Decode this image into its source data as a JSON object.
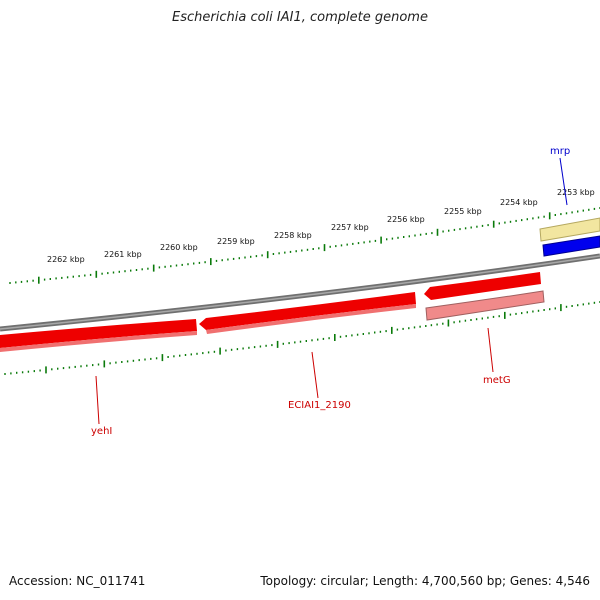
{
  "title": "Escherichia coli IAI1, complete genome",
  "footer": {
    "accession": "Accession: NC_011741",
    "topology": "Topology: circular; Length: 4,700,560 bp; Genes: 4,546"
  },
  "ruler": {
    "unit": "kbp",
    "labels": [
      "2262 kbp",
      "2261 kbp",
      "2260 kbp",
      "2259 kbp",
      "2258 kbp",
      "2257 kbp",
      "2256 kbp",
      "2255 kbp",
      "2254 kbp",
      "2253 kbp"
    ]
  },
  "genes": [
    {
      "name": "mrp",
      "strand": "plus",
      "color": "#0000cc"
    },
    {
      "name": "yehI",
      "strand": "minus",
      "color": "#cc0000"
    },
    {
      "name": "ECIAI1_2190",
      "strand": "minus",
      "color": "#cc0000"
    },
    {
      "name": "metG",
      "strand": "minus",
      "color": "#cc0000"
    }
  ],
  "colors": {
    "backbone": "#808080",
    "cds_fill": "#ee0000",
    "cds_shade": "#f08080",
    "rna": "#0000ee",
    "rna_shade": "#f2e6a0",
    "tick": "#0a7a0a"
  }
}
